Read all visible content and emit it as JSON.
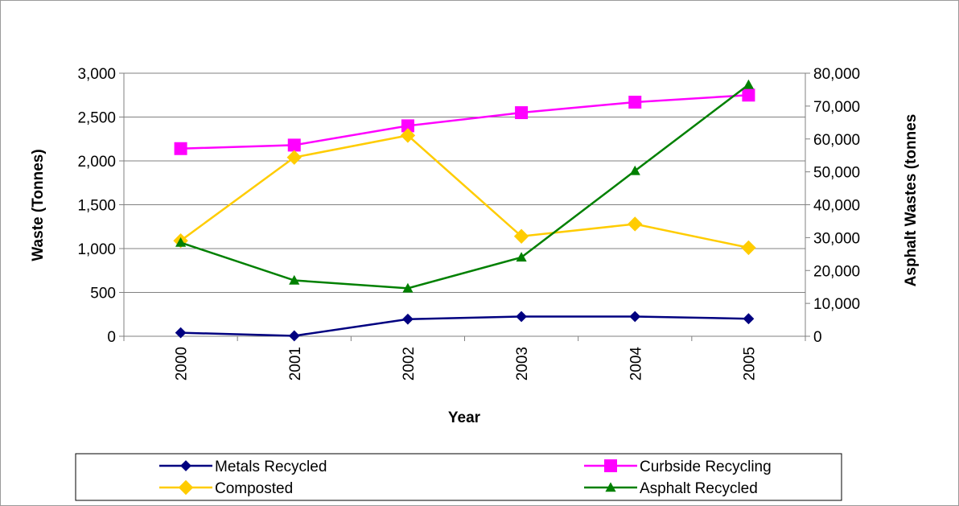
{
  "chart_data": {
    "type": "line",
    "title": "",
    "categories": [
      "2000",
      "2001",
      "2002",
      "2003",
      "2004",
      "2005"
    ],
    "xlabel": "Year",
    "ylabel": "Waste (Tonnes)",
    "y2label": "Asphalt Wastes (tonnes",
    "ylim": [
      0,
      3000
    ],
    "y2lim": [
      0,
      80000
    ],
    "yticks": [
      "0",
      "500",
      "1,000",
      "1,500",
      "2,000",
      "2,500",
      "3,000"
    ],
    "y2ticks": [
      "0",
      "10,000",
      "20,000",
      "30,000",
      "40,000",
      "50,000",
      "60,000",
      "70,000",
      "80,000"
    ],
    "grid": "horizontal major gridlines",
    "legend_position": "bottom",
    "series": [
      {
        "name": "Metals Recycled",
        "axis": "primary",
        "color": "#000080",
        "marker": "diamond",
        "values": [
          40,
          5,
          195,
          225,
          225,
          200
        ]
      },
      {
        "name": "Curbside Recycling",
        "axis": "primary",
        "color": "#FF00FF",
        "marker": "square",
        "values": [
          2140,
          2180,
          2400,
          2550,
          2670,
          2750
        ]
      },
      {
        "name": "Composted",
        "axis": "primary",
        "color": "#FFCC00",
        "marker": "diamond",
        "values": [
          1090,
          2040,
          2290,
          1140,
          1280,
          1010
        ]
      },
      {
        "name": "Asphalt Recycled",
        "axis": "secondary",
        "color": "#008000",
        "marker": "triangle",
        "values": [
          28500,
          17000,
          14600,
          24000,
          50300,
          76500
        ]
      }
    ]
  }
}
